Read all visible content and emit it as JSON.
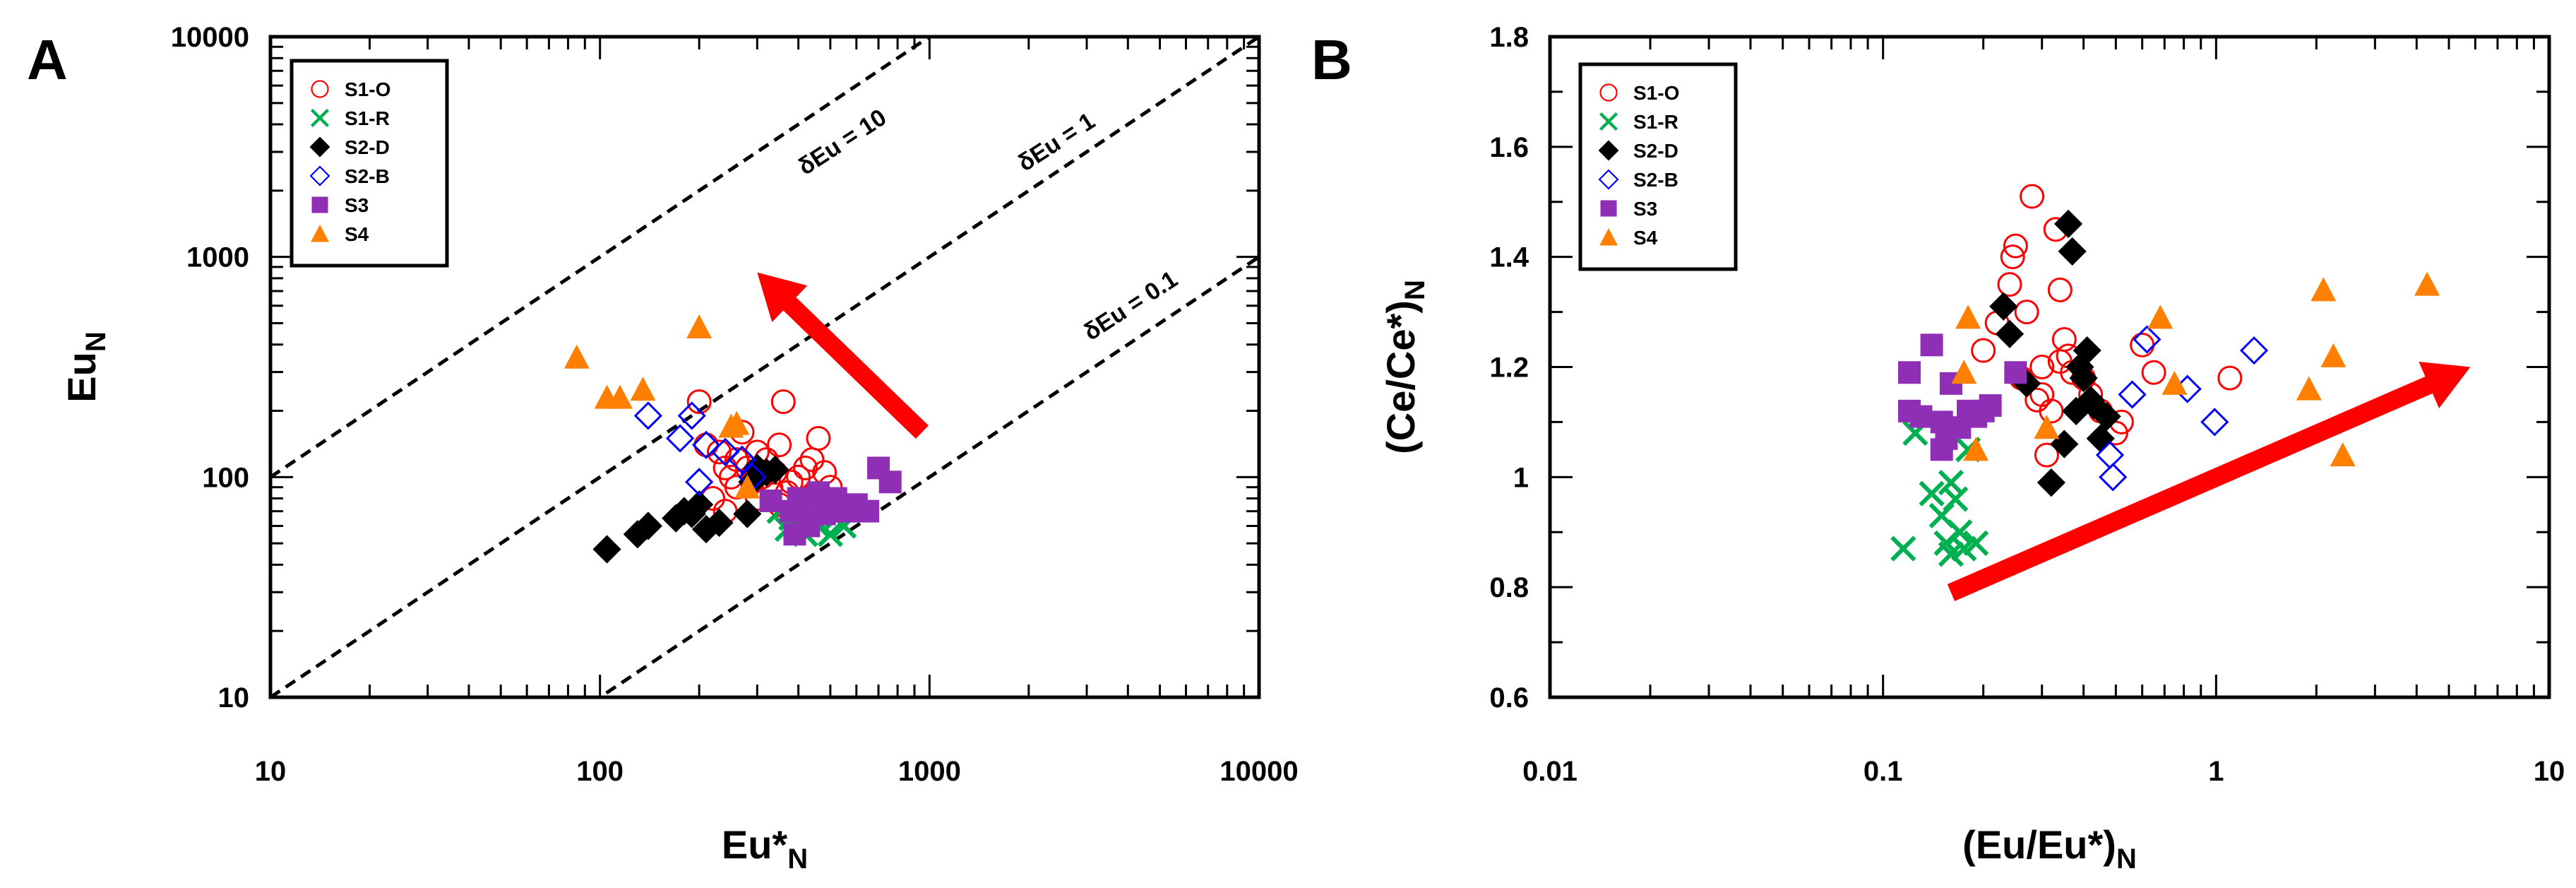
{
  "chart_data": [
    {
      "panel": "A",
      "type": "scatter",
      "xscale": "log",
      "yscale": "log",
      "xlim": [
        10,
        10000
      ],
      "ylim": [
        10,
        10000
      ],
      "xticks": [
        "10",
        "100",
        "1000",
        "10000"
      ],
      "yticks": [
        "10",
        "100",
        "1000",
        "10000"
      ],
      "xlabel": {
        "main": "Eu*",
        "sub": "N"
      },
      "ylabel": {
        "main": "Eu",
        "sub": "N"
      },
      "legend_position": "top-left",
      "reference_lines": [
        {
          "label": "δEu = 10",
          "ratio": 10
        },
        {
          "label": "δEu = 1",
          "ratio": 1
        },
        {
          "label": "δEu = 0.1",
          "ratio": 0.1
        }
      ],
      "arrow": {
        "from": [
          950,
          160
        ],
        "to": [
          300,
          850
        ],
        "color": "#ff0000"
      },
      "series": [
        {
          "name": "S1-O",
          "marker": "open-circle",
          "color": "#ff0000",
          "points": [
            [
              200,
              220
            ],
            [
              210,
              140
            ],
            [
              230,
              130
            ],
            [
              240,
              110
            ],
            [
              250,
              100
            ],
            [
              260,
              120
            ],
            [
              270,
              160
            ],
            [
              280,
              110
            ],
            [
              290,
              95
            ],
            [
              300,
              130
            ],
            [
              310,
              100
            ],
            [
              320,
              120
            ],
            [
              330,
              90
            ],
            [
              340,
              105
            ],
            [
              350,
              140
            ],
            [
              360,
              220
            ],
            [
              370,
              85
            ],
            [
              380,
              95
            ],
            [
              400,
              100
            ],
            [
              420,
              110
            ],
            [
              440,
              120
            ],
            [
              460,
              150
            ],
            [
              480,
              105
            ],
            [
              500,
              90
            ],
            [
              220,
              80
            ],
            [
              240,
              70
            ],
            [
              260,
              90
            ],
            [
              300,
              80
            ],
            [
              350,
              75
            ],
            [
              420,
              80
            ]
          ]
        },
        {
          "name": "S1-R",
          "marker": "x",
          "color": "#00b050",
          "points": [
            [
              350,
              70
            ],
            [
              380,
              65
            ],
            [
              400,
              60
            ],
            [
              420,
              55
            ],
            [
              440,
              65
            ],
            [
              460,
              60
            ],
            [
              480,
              70
            ],
            [
              500,
              55
            ],
            [
              520,
              65
            ],
            [
              550,
              60
            ],
            [
              370,
              58
            ]
          ]
        },
        {
          "name": "S2-D",
          "marker": "filled-diamond",
          "color": "#000000",
          "points": [
            [
              105,
              47
            ],
            [
              130,
              55
            ],
            [
              140,
              60
            ],
            [
              170,
              65
            ],
            [
              180,
              70
            ],
            [
              190,
              68
            ],
            [
              200,
              75
            ],
            [
              210,
              58
            ],
            [
              230,
              62
            ],
            [
              280,
              68
            ],
            [
              290,
              95
            ],
            [
              300,
              110
            ],
            [
              320,
              105
            ],
            [
              340,
              108
            ]
          ]
        },
        {
          "name": "S2-B",
          "marker": "open-diamond",
          "color": "#0000ff",
          "points": [
            [
              140,
              190
            ],
            [
              175,
              150
            ],
            [
              190,
              190
            ],
            [
              200,
              95
            ],
            [
              210,
              140
            ],
            [
              240,
              130
            ],
            [
              270,
              120
            ],
            [
              290,
              100
            ]
          ]
        },
        {
          "name": "S3",
          "marker": "filled-square",
          "color": "#8e2fb5",
          "points": [
            [
              380,
              70
            ],
            [
              400,
              80
            ],
            [
              420,
              75
            ],
            [
              440,
              72
            ],
            [
              460,
              85
            ],
            [
              480,
              68
            ],
            [
              500,
              75
            ],
            [
              520,
              80
            ],
            [
              560,
              70
            ],
            [
              600,
              75
            ],
            [
              650,
              70
            ],
            [
              700,
              110
            ],
            [
              760,
              95
            ],
            [
              390,
              55
            ],
            [
              430,
              60
            ],
            [
              330,
              78
            ]
          ]
        },
        {
          "name": "S4",
          "marker": "filled-triangle",
          "color": "#ff7f00",
          "points": [
            [
              85,
              350
            ],
            [
              105,
              230
            ],
            [
              115,
              230
            ],
            [
              135,
              250
            ],
            [
              200,
              480
            ],
            [
              250,
              170
            ],
            [
              260,
              175
            ],
            [
              280,
              90
            ]
          ]
        }
      ]
    },
    {
      "panel": "B",
      "type": "scatter",
      "xscale": "log",
      "yscale": "linear",
      "xlim": [
        0.01,
        10
      ],
      "ylim": [
        0.6,
        1.8
      ],
      "xticks": [
        "0.01",
        "0.1",
        "1",
        "10"
      ],
      "yticks": [
        "0.6",
        "0.8",
        "1",
        "1.2",
        "1.4",
        "1.6",
        "1.8"
      ],
      "xlabel": {
        "main": "(Eu/Eu*)",
        "sub": "N"
      },
      "ylabel": {
        "main": "(Ce/Ce*)",
        "sub": "N"
      },
      "legend_position": "top-left",
      "arrow": {
        "from": [
          0.16,
          0.79
        ],
        "to": [
          5.8,
          1.2
        ],
        "color": "#ff0000"
      },
      "series": [
        {
          "name": "S1-O",
          "marker": "open-circle",
          "color": "#ff0000",
          "points": [
            [
              0.2,
              1.23
            ],
            [
              0.22,
              1.28
            ],
            [
              0.24,
              1.35
            ],
            [
              0.245,
              1.4
            ],
            [
              0.25,
              1.42
            ],
            [
              0.26,
              1.18
            ],
            [
              0.27,
              1.3
            ],
            [
              0.28,
              1.51
            ],
            [
              0.29,
              1.14
            ],
            [
              0.3,
              1.2
            ],
            [
              0.31,
              1.04
            ],
            [
              0.32,
              1.12
            ],
            [
              0.33,
              1.45
            ],
            [
              0.34,
              1.34
            ],
            [
              0.35,
              1.25
            ],
            [
              0.36,
              1.22
            ],
            [
              0.37,
              1.19
            ],
            [
              0.4,
              1.18
            ],
            [
              0.42,
              1.15
            ],
            [
              0.45,
              1.12
            ],
            [
              0.5,
              1.08
            ],
            [
              0.52,
              1.1
            ],
            [
              0.6,
              1.24
            ],
            [
              0.65,
              1.19
            ],
            [
              1.1,
              1.18
            ],
            [
              0.3,
              1.15
            ],
            [
              0.34,
              1.21
            ]
          ]
        },
        {
          "name": "S1-R",
          "marker": "x",
          "color": "#00b050",
          "points": [
            [
              0.115,
              0.87
            ],
            [
              0.125,
              1.08
            ],
            [
              0.14,
              0.97
            ],
            [
              0.15,
              0.93
            ],
            [
              0.155,
              0.88
            ],
            [
              0.16,
              0.99
            ],
            [
              0.165,
              0.96
            ],
            [
              0.17,
              0.9
            ],
            [
              0.175,
              0.87
            ],
            [
              0.18,
              1.05
            ],
            [
              0.19,
              0.88
            ],
            [
              0.16,
              0.86
            ]
          ]
        },
        {
          "name": "S2-D",
          "marker": "filled-diamond",
          "color": "#000000",
          "points": [
            [
              0.23,
              1.31
            ],
            [
              0.24,
              1.26
            ],
            [
              0.27,
              1.17
            ],
            [
              0.32,
              0.99
            ],
            [
              0.35,
              1.06
            ],
            [
              0.36,
              1.46
            ],
            [
              0.37,
              1.41
            ],
            [
              0.38,
              1.12
            ],
            [
              0.4,
              1.18
            ],
            [
              0.41,
              1.23
            ],
            [
              0.42,
              1.14
            ],
            [
              0.43,
              1.13
            ],
            [
              0.45,
              1.07
            ],
            [
              0.47,
              1.11
            ],
            [
              0.39,
              1.2
            ]
          ]
        },
        {
          "name": "S2-B",
          "marker": "open-diamond",
          "color": "#0000ff",
          "points": [
            [
              0.48,
              1.04
            ],
            [
              0.49,
              1.0
            ],
            [
              0.56,
              1.15
            ],
            [
              0.62,
              1.25
            ],
            [
              0.82,
              1.16
            ],
            [
              0.99,
              1.1
            ],
            [
              1.3,
              1.23
            ]
          ]
        },
        {
          "name": "S3",
          "marker": "filled-square",
          "color": "#8e2fb5",
          "points": [
            [
              0.12,
              1.19
            ],
            [
              0.12,
              1.12
            ],
            [
              0.13,
              1.11
            ],
            [
              0.14,
              1.24
            ],
            [
              0.15,
              1.05
            ],
            [
              0.155,
              1.07
            ],
            [
              0.16,
              1.17
            ],
            [
              0.17,
              1.09
            ],
            [
              0.18,
              1.12
            ],
            [
              0.19,
              1.11
            ],
            [
              0.2,
              1.12
            ],
            [
              0.21,
              1.13
            ],
            [
              0.25,
              1.19
            ],
            [
              0.15,
              1.1
            ]
          ]
        },
        {
          "name": "S4",
          "marker": "filled-triangle",
          "color": "#ff7f00",
          "points": [
            [
              0.175,
              1.19
            ],
            [
              0.18,
              1.29
            ],
            [
              0.19,
              1.05
            ],
            [
              0.31,
              1.09
            ],
            [
              0.68,
              1.29
            ],
            [
              0.75,
              1.17
            ],
            [
              1.9,
              1.16
            ],
            [
              2.1,
              1.34
            ],
            [
              2.25,
              1.22
            ],
            [
              2.4,
              1.04
            ],
            [
              4.3,
              1.35
            ]
          ]
        }
      ]
    }
  ]
}
